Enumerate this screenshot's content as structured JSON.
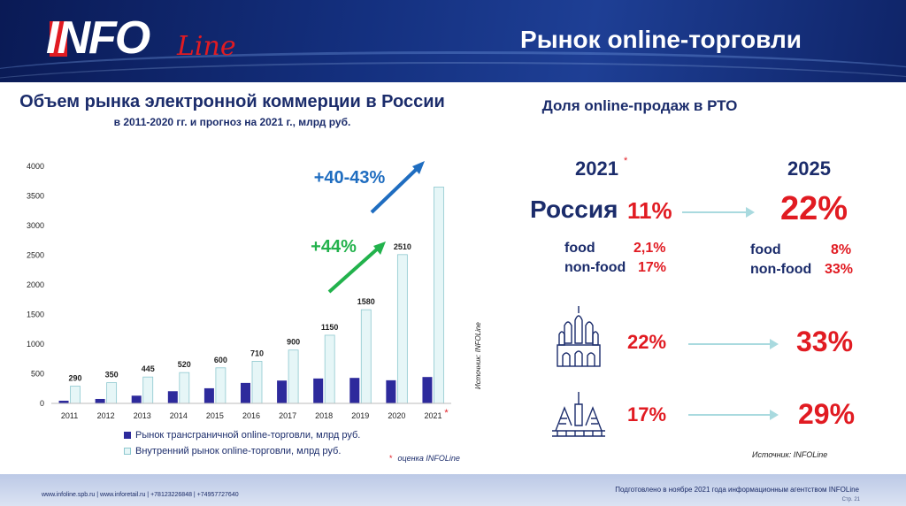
{
  "header": {
    "logo_text": "INFO",
    "logo_script": "Line",
    "title": "Рынок online-торговли"
  },
  "left": {
    "title": "Объем рынка электронной коммерции в России",
    "subtitle": "в 2011-2020 гг. и прогноз на 2021 г., млрд руб.",
    "source": "Источник: INFOLine",
    "legend": {
      "cross_border": "Рынок трансграничной online-торговли, млрд руб.",
      "domestic": "Внутренний рынок online-торговли, млрд руб."
    },
    "note_star": "*",
    "note": "оценка INFOLine",
    "growth_top": "+40-43%",
    "growth_mid": "+44%"
  },
  "chart_data": {
    "type": "bar",
    "categories": [
      "2011",
      "2012",
      "2013",
      "2014",
      "2015",
      "2016",
      "2017",
      "2018",
      "2019",
      "2020",
      "2021"
    ],
    "category_marks": [
      "",
      "",
      "",
      "",
      "",
      "",
      "",
      "",
      "",
      "",
      "*"
    ],
    "series": [
      {
        "name": "Рынок трансграничной online-торговли, млрд руб.",
        "values": [
          45,
          75,
          130,
          205,
          255,
          345,
          385,
          420,
          430,
          390,
          445
        ],
        "color": "#2d2a9c"
      },
      {
        "name": "Внутренний рынок online-торговли, млрд руб.",
        "values": [
          290,
          350,
          445,
          520,
          600,
          710,
          900,
          1150,
          1580,
          2510,
          3650
        ],
        "color": "#e6f6f7",
        "labels": [
          "290",
          "350",
          "445",
          "520",
          "600",
          "710",
          "900",
          "1150",
          "1580",
          "2510",
          ""
        ]
      }
    ],
    "ylim": [
      0,
      4000
    ],
    "yticks": [
      "0",
      "500",
      "1000",
      "1500",
      "2000",
      "2500",
      "3000",
      "3500",
      "4000"
    ],
    "grid": false
  },
  "right": {
    "title": "Доля online-продаж в РТО",
    "year_a": "2021",
    "year_a_star": "*",
    "year_b": "2025",
    "russia_label": "Россия",
    "russia_a": "11%",
    "russia_b": "22%",
    "food_label": "food",
    "nonfood_label": "non-food",
    "food_a": "2,1%",
    "nonfood_a": "17%",
    "food_b": "8%",
    "nonfood_b": "33%",
    "moscow_a": "22%",
    "moscow_b": "33%",
    "spb_a": "17%",
    "spb_b": "29%",
    "source": "Источник: INFOLine"
  },
  "footer": {
    "contacts": "www.infoline.spb.ru | www.inforetail.ru | +78123226848 | +74957727640",
    "prepared": "Подготовлено в ноябре 2021 года информационным агентством INFOLine",
    "page": "Стр. 21"
  },
  "colors": {
    "navy": "#1b2c6b",
    "red": "#e11b22",
    "cross_border_bar": "#2d2a9c",
    "domestic_bar": "#e6f6f7",
    "arrow_blue": "#1f6dc0",
    "arrow_green": "#22b24c"
  }
}
